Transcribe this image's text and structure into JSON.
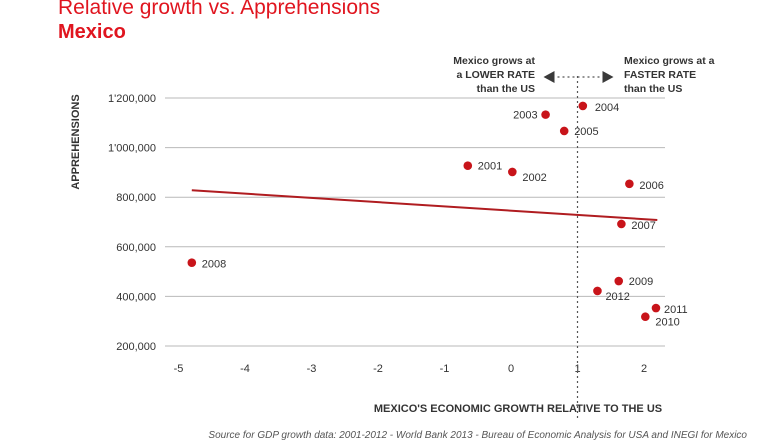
{
  "chart_data": {
    "type": "scatter",
    "title": "Relative growth vs. Apprehensions",
    "subtitle": "Mexico",
    "xlabel": "MEXICO'S ECONOMIC GROWTH RELATIVE TO THE US",
    "ylabel": "APPREHENSIONS",
    "xlim": [
      -5,
      2.2
    ],
    "ylim": [
      200000,
      1200000
    ],
    "x_ticks": [
      -5,
      -4,
      -3,
      -2,
      -1,
      0,
      1,
      2
    ],
    "x_tick_labels": [
      "-5",
      "-4",
      "-3",
      "-2",
      "-1",
      "0",
      "1",
      "2"
    ],
    "y_ticks": [
      200000,
      400000,
      600000,
      800000,
      1000000,
      1200000
    ],
    "y_tick_labels": [
      "200,000",
      "400,000",
      "600,000",
      "800,000",
      "1'000,000",
      "1'200,000"
    ],
    "grid": "horizontal",
    "marker_color": "#c8141a",
    "trend_color": "#b01c20",
    "points": [
      {
        "label": "2001",
        "x": -0.65,
        "y": 927000
      },
      {
        "label": "2002",
        "x": 0.02,
        "y": 902000
      },
      {
        "label": "2003",
        "x": 0.52,
        "y": 1133000
      },
      {
        "label": "2004",
        "x": 1.08,
        "y": 1168000
      },
      {
        "label": "2005",
        "x": 0.8,
        "y": 1067000
      },
      {
        "label": "2006",
        "x": 1.78,
        "y": 854000
      },
      {
        "label": "2007",
        "x": 1.66,
        "y": 692000
      },
      {
        "label": "2008",
        "x": -4.8,
        "y": 536000
      },
      {
        "label": "2009",
        "x": 1.62,
        "y": 462000
      },
      {
        "label": "2010",
        "x": 2.02,
        "y": 318000
      },
      {
        "label": "2011",
        "x": 2.18,
        "y": 353000
      },
      {
        "label": "2012",
        "x": 1.3,
        "y": 422000
      }
    ],
    "trendline": {
      "x": [
        -4.8,
        2.2
      ],
      "y": [
        828000,
        708000
      ]
    },
    "reference_line_x": 1
  },
  "annotations": {
    "left": "Mexico grows at\na LOWER RATE\nthan the US",
    "right": "Mexico grows at a\nFASTER RATE\nthan the US"
  },
  "source": "Source for GDP growth data: 2001-2012 - World Bank 2013 - Bureau of Economic Analysis for USA and INEGI for Mexico"
}
